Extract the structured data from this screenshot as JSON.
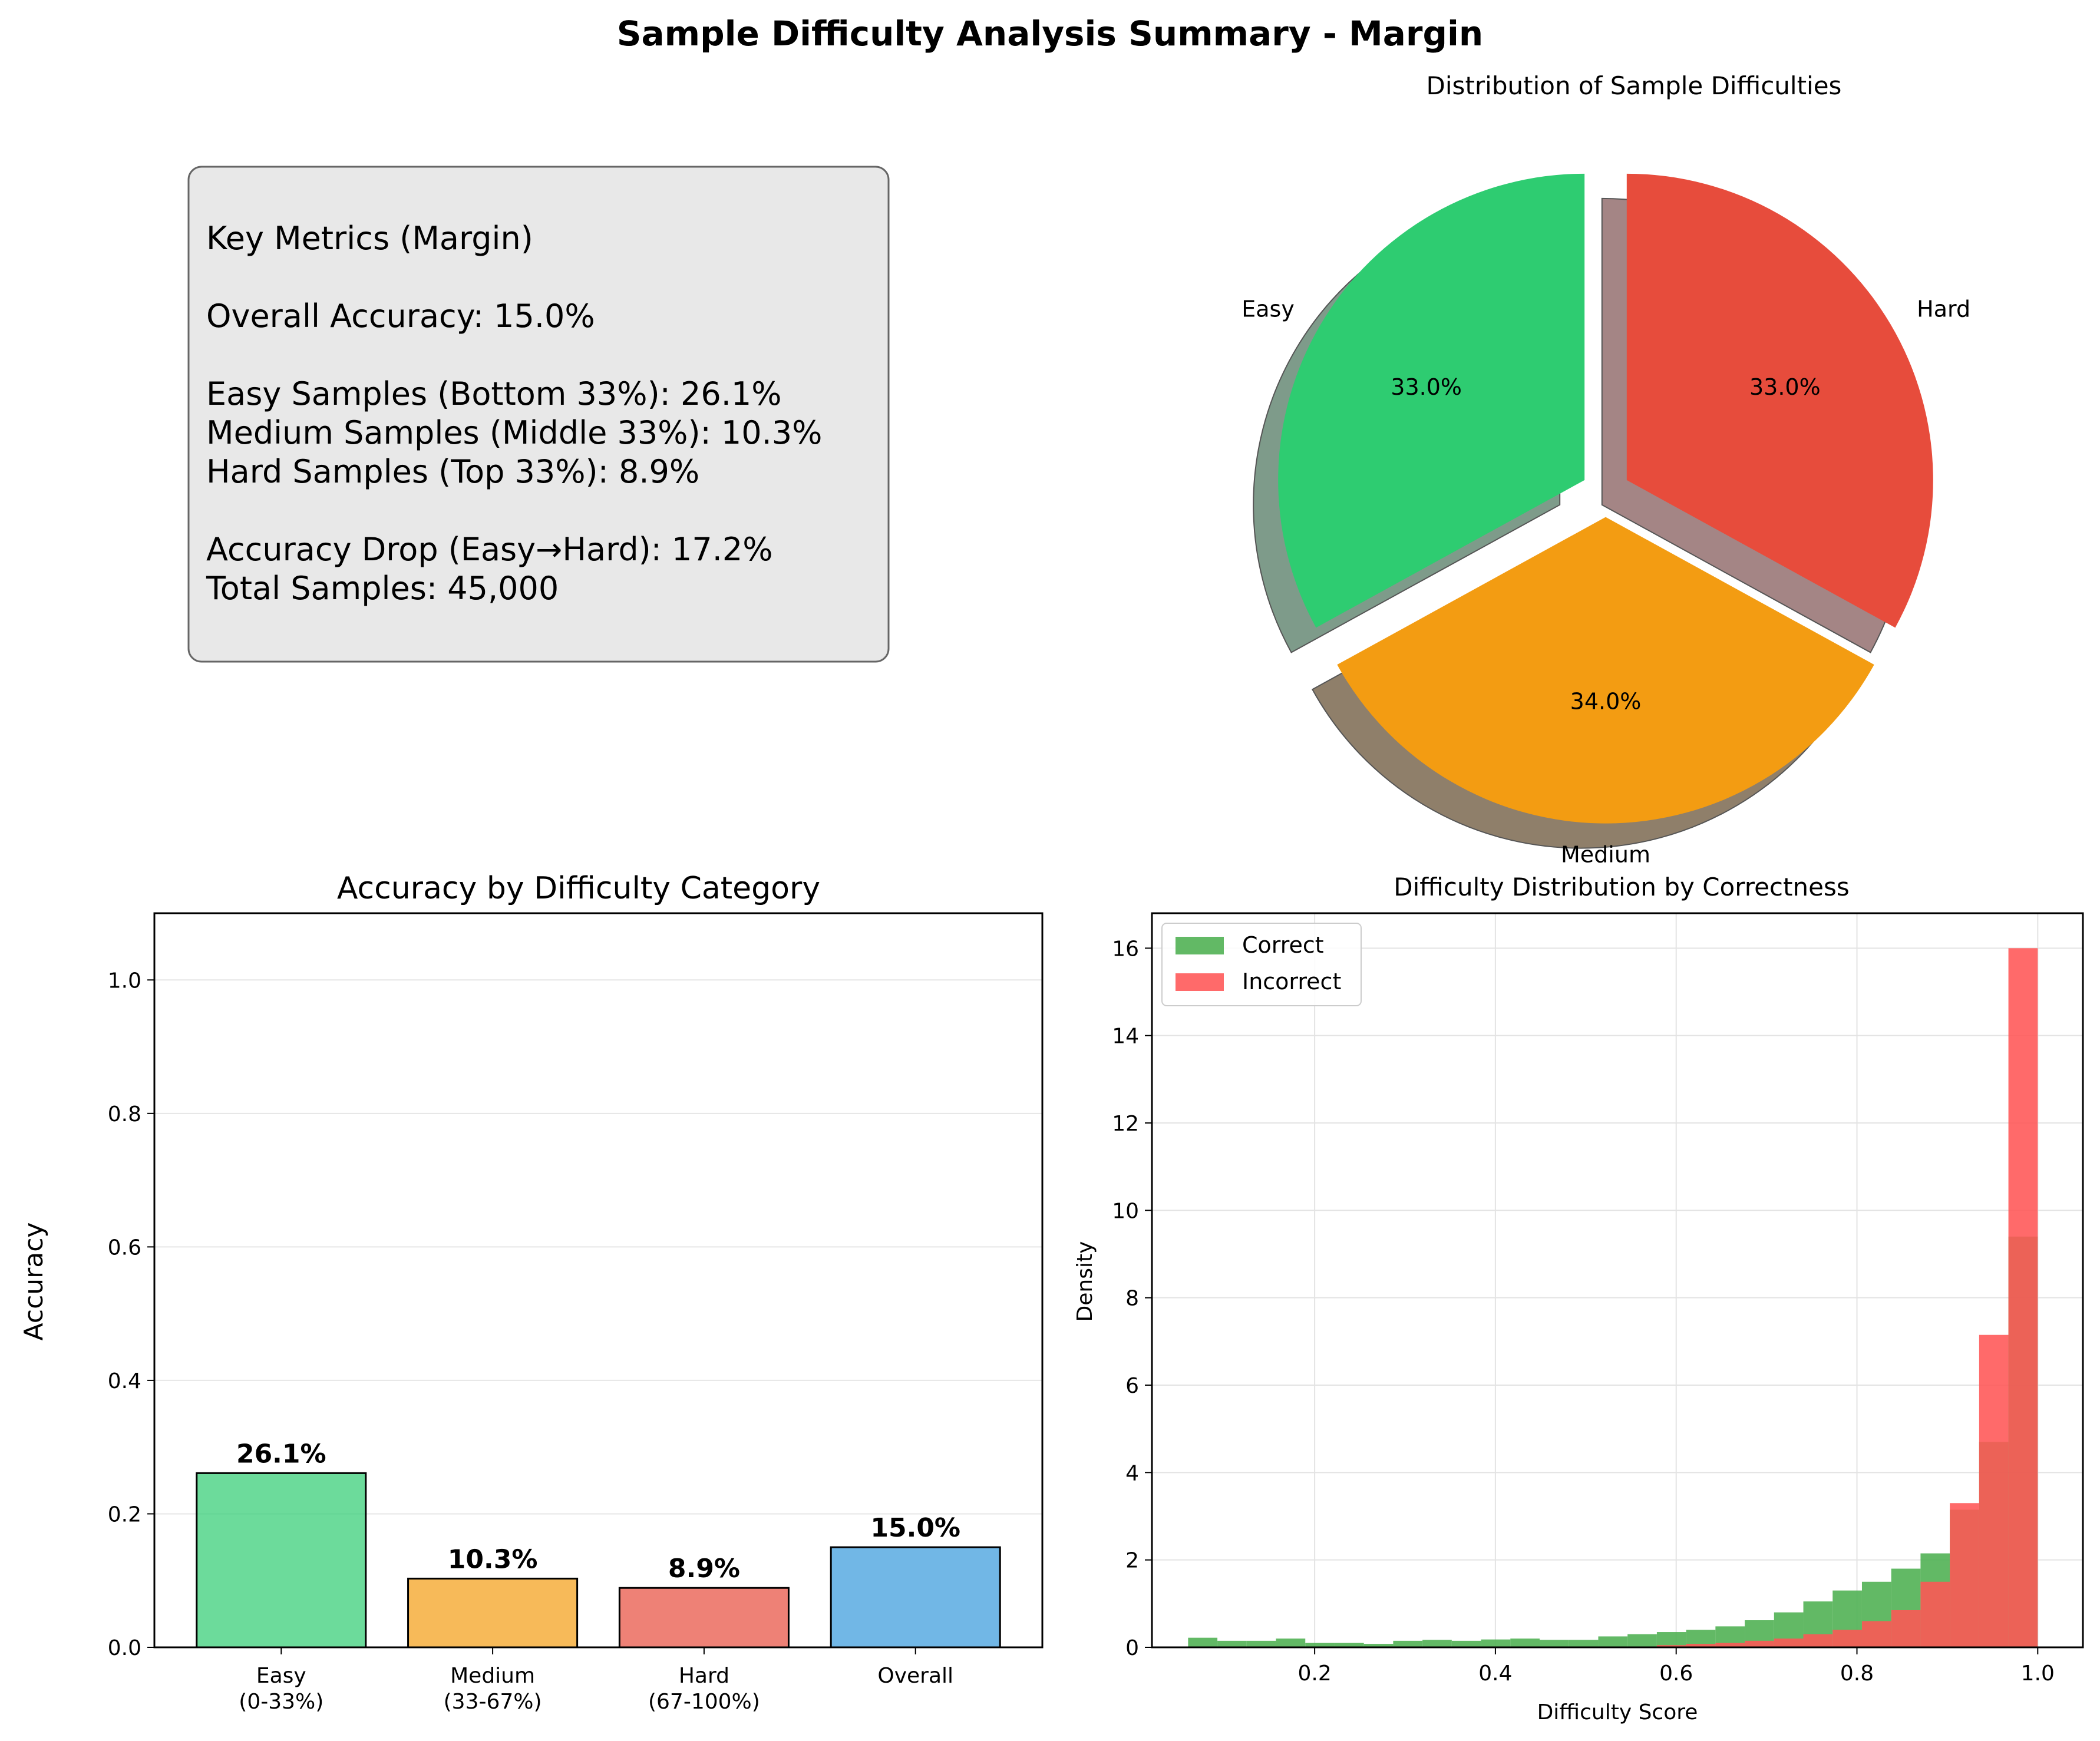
{
  "figure": {
    "title": "Sample Difficulty Analysis Summary - Margin"
  },
  "metrics_box": {
    "lines": [
      "Key Metrics (Margin)",
      "",
      "Overall Accuracy: 15.0%",
      "",
      "Easy Samples (Bottom 33%): 26.1%",
      "Medium Samples (Middle 33%): 10.3%",
      "Hard Samples (Top 33%): 8.9%",
      "",
      "Accuracy Drop (Easy→Hard): 17.2%",
      "Total Samples: 45,000"
    ],
    "background": "#e8e8e8",
    "border": "#666666"
  },
  "chart_data": [
    {
      "type": "pie",
      "title": "Distribution of Sample Difficulties",
      "labels": [
        "Easy",
        "Medium",
        "Hard"
      ],
      "values": [
        33.0,
        34.0,
        33.0
      ],
      "autopct": [
        "33.0%",
        "34.0%",
        "33.0%"
      ],
      "colors": [
        "#2ecc71",
        "#f39c12",
        "#e74c3c"
      ],
      "explode": true,
      "shadow": true,
      "start_angle": 90
    },
    {
      "type": "bar",
      "title": "Accuracy by Difficulty Category",
      "categories": [
        "Easy\n(0-33%)",
        "Medium\n(33-67%)",
        "Hard\n(67-100%)",
        "Overall"
      ],
      "values": [
        0.261,
        0.103,
        0.089,
        0.15
      ],
      "data_labels": [
        "26.1%",
        "10.3%",
        "8.9%",
        "15.0%"
      ],
      "colors": [
        "#2ecc71",
        "#f39c12",
        "#e74c3c",
        "#3498db"
      ],
      "xlabel": "",
      "ylabel": "Accuracy",
      "ylim": [
        0,
        1.1
      ],
      "yticks": [
        "0.0",
        "0.2",
        "0.4",
        "0.6",
        "0.8",
        "1.0"
      ],
      "grid": "y"
    },
    {
      "type": "histogram",
      "title": "Difficulty Distribution by Correctness",
      "xlabel": "Difficulty Score",
      "ylabel": "Density",
      "xlim": [
        0.02,
        1.05
      ],
      "ylim": [
        0,
        16.8
      ],
      "xticks": [
        "0.2",
        "0.4",
        "0.6",
        "0.8",
        "1.0"
      ],
      "yticks": [
        "0",
        "2",
        "4",
        "6",
        "8",
        "10",
        "12",
        "14",
        "16"
      ],
      "grid": true,
      "legend_position": "top-left",
      "bins": {
        "start": 0.06,
        "end": 1.0,
        "count": 29
      },
      "series": [
        {
          "name": "Correct",
          "color": "#4caf50",
          "values": [
            0.22,
            0.15,
            0.15,
            0.2,
            0.1,
            0.1,
            0.08,
            0.15,
            0.17,
            0.15,
            0.18,
            0.2,
            0.17,
            0.17,
            0.25,
            0.3,
            0.35,
            0.4,
            0.48,
            0.62,
            0.8,
            1.05,
            1.3,
            1.5,
            1.8,
            2.15,
            3.15,
            4.7,
            9.4
          ]
        },
        {
          "name": "Incorrect",
          "color": "#ff5555",
          "values": [
            0,
            0,
            0,
            0,
            0,
            0,
            0,
            0,
            0,
            0,
            0,
            0,
            0,
            0,
            0,
            0.02,
            0.05,
            0.08,
            0.1,
            0.15,
            0.2,
            0.3,
            0.4,
            0.6,
            0.85,
            1.5,
            3.3,
            7.15,
            16.0
          ]
        }
      ]
    }
  ]
}
